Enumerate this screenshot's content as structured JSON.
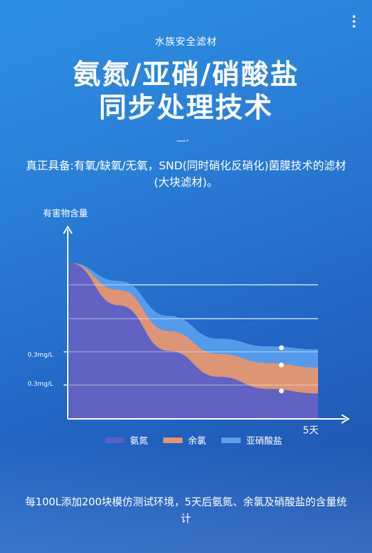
{
  "brand": "水族安全滤材",
  "title_line1": "氨氮/亚硝/硝酸盐",
  "title_line2": "同步处理技术",
  "divider": "—·",
  "description": "真正具备:有氧/缺氧/无氧，SND(同时硝化反硝化)菌膜技术的滤材(大块滤材)。",
  "footer": "每100L添加200块模仿测试环境，5天后氨氮、余氯及硝酸盐的含量统计",
  "chart_data": {
    "type": "area",
    "ylabel": "有害物含量",
    "xlabel": "5天",
    "y_ticks": [
      "0.3mg/L",
      "0.3mg/L"
    ],
    "x": [
      0,
      1,
      2,
      3,
      4,
      5
    ],
    "series": [
      {
        "name": "氨氮",
        "color": "#5b5fc7",
        "values": [
          1.0,
          0.72,
          0.42,
          0.25,
          0.17,
          0.14
        ]
      },
      {
        "name": "余氯",
        "color": "#e8956a",
        "values": [
          1.0,
          0.82,
          0.55,
          0.4,
          0.34,
          0.31
        ]
      },
      {
        "name": "亚硝酸盐",
        "color": "#5aa0ee",
        "values": [
          1.0,
          0.88,
          0.65,
          0.5,
          0.45,
          0.43
        ]
      }
    ]
  }
}
